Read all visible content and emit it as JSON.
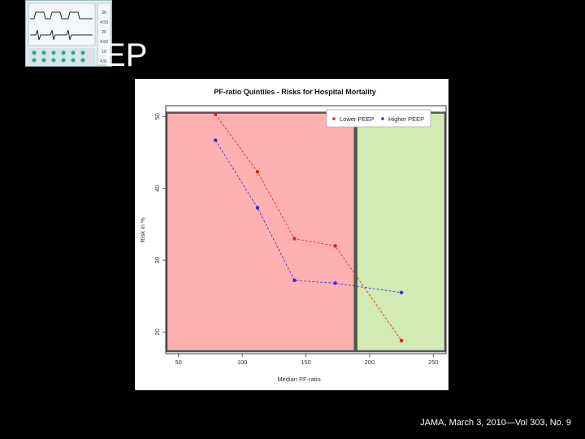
{
  "slide": {
    "title": "EP",
    "citation": "JAMA, March 3, 2010—Vol 303, No. 9"
  },
  "thumbnail": {
    "readouts": [
      "30",
      "4.50",
      "20",
      "4.50",
      "10",
      "4.50"
    ]
  },
  "chart_data": {
    "type": "line",
    "title": "PF-ratio Quintiles - Risks for Hospital Mortality",
    "xlabel": "Median PF-ratio",
    "ylabel": "Risk in %",
    "xlim": [
      40,
      260
    ],
    "ylim": [
      17,
      51.5
    ],
    "xticks": [
      50,
      100,
      150,
      200,
      250
    ],
    "yticks": [
      20,
      30,
      40,
      50
    ],
    "legend_position": "top-right",
    "regions": [
      {
        "x_from": 40,
        "x_to": 189,
        "color": "#ffb0b0"
      },
      {
        "x_from": 189,
        "x_to": 260,
        "color": "#d2ebb5"
      }
    ],
    "series": [
      {
        "name": "Lower PEEP",
        "color": "#e02020",
        "x": [
          79,
          112,
          141,
          173,
          225
        ],
        "y": [
          50.3,
          42.3,
          33.0,
          32.0,
          18.8
        ]
      },
      {
        "name": "Higher PEEP",
        "color": "#3a2bc8",
        "x": [
          79,
          112,
          141,
          173,
          225
        ],
        "y": [
          46.7,
          37.3,
          27.2,
          26.8,
          25.5
        ]
      }
    ]
  }
}
